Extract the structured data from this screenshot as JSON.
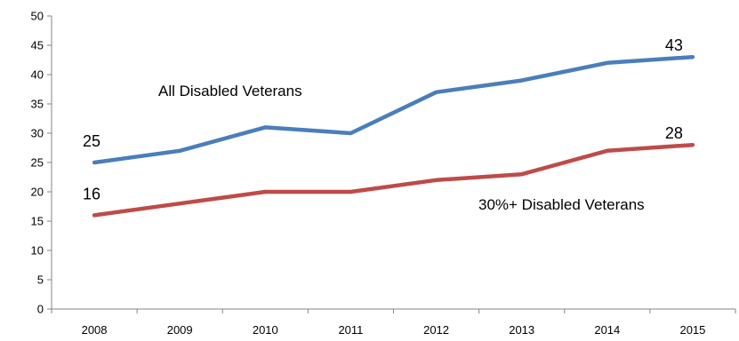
{
  "chart_data": {
    "type": "line",
    "title": "",
    "xlabel": "",
    "ylabel": "",
    "categories": [
      "2008",
      "2009",
      "2010",
      "2011",
      "2012",
      "2013",
      "2014",
      "2015"
    ],
    "ylim": [
      0,
      50
    ],
    "yticks": [
      "0",
      "5",
      "10",
      "15",
      "20",
      "25",
      "30",
      "35",
      "40",
      "45",
      "50"
    ],
    "grid": false,
    "legend": "none",
    "series": [
      {
        "name": "All Disabled Veterans",
        "color": "#4a7ebb",
        "values": [
          25,
          27,
          31,
          30,
          37,
          39,
          42,
          43
        ],
        "data_labels": {
          "first": "25",
          "last": "43"
        }
      },
      {
        "name": "30%+ Disabled Veterans",
        "color": "#be4b48",
        "values": [
          16,
          18,
          20,
          20,
          22,
          23,
          27,
          28
        ],
        "data_labels": {
          "first": "16",
          "last": "28"
        }
      }
    ]
  }
}
